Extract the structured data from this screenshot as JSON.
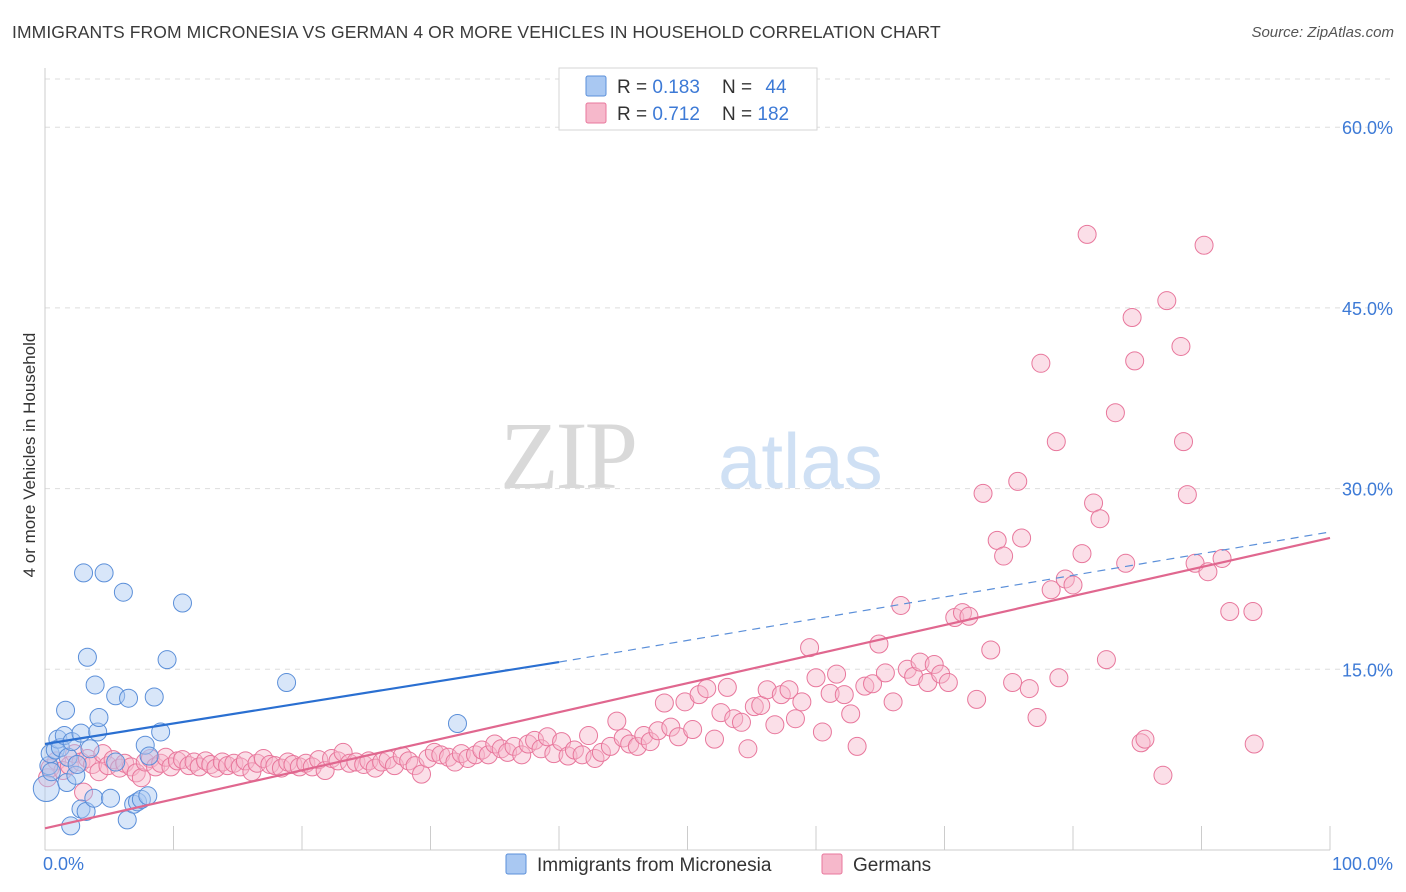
{
  "title": "IMMIGRANTS FROM MICRONESIA VS GERMAN 4 OR MORE VEHICLES IN HOUSEHOLD CORRELATION CHART",
  "source": "Source: ZipAtlas.com",
  "watermark": {
    "zip": "ZIP",
    "atlas": "atlas"
  },
  "colors": {
    "blue": "#5b8fd9",
    "blue_fill": "#a9c8f2",
    "blue_line": "#2a6fd1",
    "pink": "#e8779c",
    "pink_fill": "#f6b8cb",
    "pink_line": "#e0678f",
    "axis_text": "#3d7ad6",
    "grid": "#dddddd"
  },
  "legend": {
    "items": [
      {
        "r_label": "R = ",
        "r_value": "0.183",
        "n_label": "N = ",
        "n_value": "44"
      },
      {
        "r_label": "R = ",
        "r_value": "0.712",
        "n_label": "N = ",
        "n_value": "182"
      }
    ]
  },
  "bottom_legend": [
    "Immigrants from Micronesia",
    "Germans"
  ],
  "chart_data": {
    "type": "scatter",
    "title": "IMMIGRANTS FROM MICRONESIA VS GERMAN 4 OR MORE VEHICLES IN HOUSEHOLD CORRELATION CHART",
    "xlabel": "",
    "ylabel": "4 or more Vehicles in Household",
    "xlim": [
      0,
      100
    ],
    "ylim": [
      0,
      64
    ],
    "x_tick_labels": [
      "0.0%",
      "100.0%"
    ],
    "y_ticks": [
      15,
      30,
      45,
      60
    ],
    "y_tick_labels": [
      "15.0%",
      "30.0%",
      "45.0%",
      "60.0%"
    ],
    "grid": true,
    "legend_position": "top-center",
    "series": [
      {
        "name": "Immigrants from Micronesia",
        "color": "#a9c8f2",
        "r": 0.183,
        "n": 44,
        "trend": {
          "x": [
            0,
            40
          ],
          "y": [
            8.8,
            15.6
          ],
          "dashed_to": [
            100,
            26.4
          ]
        },
        "points": [
          [
            0.1,
            5.1
          ],
          [
            0.3,
            7.0
          ],
          [
            0.4,
            8.0
          ],
          [
            0.5,
            6.5
          ],
          [
            0.8,
            8.3
          ],
          [
            1.0,
            9.2
          ],
          [
            1.2,
            8.5
          ],
          [
            1.5,
            9.5
          ],
          [
            1.6,
            11.6
          ],
          [
            1.7,
            5.6
          ],
          [
            1.8,
            7.7
          ],
          [
            2.0,
            2.0
          ],
          [
            2.1,
            9.0
          ],
          [
            2.4,
            6.2
          ],
          [
            2.5,
            7.1
          ],
          [
            2.8,
            9.7
          ],
          [
            2.8,
            3.4
          ],
          [
            3.0,
            23.0
          ],
          [
            3.2,
            3.2
          ],
          [
            3.3,
            16.0
          ],
          [
            3.5,
            8.4
          ],
          [
            3.8,
            4.3
          ],
          [
            3.9,
            13.7
          ],
          [
            4.1,
            9.8
          ],
          [
            4.2,
            11.0
          ],
          [
            4.6,
            23.0
          ],
          [
            5.1,
            4.3
          ],
          [
            5.5,
            7.3
          ],
          [
            5.5,
            12.8
          ],
          [
            6.1,
            21.4
          ],
          [
            6.4,
            2.5
          ],
          [
            6.5,
            12.6
          ],
          [
            6.9,
            3.8
          ],
          [
            7.2,
            4.0
          ],
          [
            7.5,
            4.2
          ],
          [
            7.8,
            8.7
          ],
          [
            8.0,
            4.5
          ],
          [
            8.1,
            7.8
          ],
          [
            8.5,
            12.7
          ],
          [
            9.0,
            9.8
          ],
          [
            9.5,
            15.8
          ],
          [
            10.7,
            20.5
          ],
          [
            18.8,
            13.9
          ],
          [
            32.1,
            10.5
          ]
        ]
      },
      {
        "name": "Germans",
        "color": "#f6b8cb",
        "r": 0.712,
        "n": 182,
        "trend": {
          "x": [
            0,
            100
          ],
          "y": [
            1.8,
            25.9
          ]
        },
        "points": [
          [
            0.2,
            6.0
          ],
          [
            0.4,
            6.8
          ],
          [
            0.9,
            7.4
          ],
          [
            1.4,
            6.6
          ],
          [
            1.9,
            7.0
          ],
          [
            2.3,
            8.0
          ],
          [
            2.8,
            7.3
          ],
          [
            3.0,
            4.8
          ],
          [
            3.3,
            7.6
          ],
          [
            3.7,
            7.1
          ],
          [
            4.2,
            6.5
          ],
          [
            4.5,
            8.0
          ],
          [
            4.9,
            7.0
          ],
          [
            5.3,
            7.5
          ],
          [
            5.8,
            6.8
          ],
          [
            6.2,
            7.2
          ],
          [
            6.7,
            6.9
          ],
          [
            7.1,
            6.4
          ],
          [
            7.5,
            6.0
          ],
          [
            7.8,
            7.3
          ],
          [
            8.2,
            7.6
          ],
          [
            8.6,
            6.9
          ],
          [
            9.0,
            7.2
          ],
          [
            9.4,
            7.7
          ],
          [
            9.8,
            6.9
          ],
          [
            10.3,
            7.4
          ],
          [
            10.7,
            7.5
          ],
          [
            11.2,
            7.0
          ],
          [
            11.6,
            7.3
          ],
          [
            12.0,
            6.9
          ],
          [
            12.5,
            7.4
          ],
          [
            12.9,
            7.1
          ],
          [
            13.3,
            6.8
          ],
          [
            13.8,
            7.3
          ],
          [
            14.2,
            7.0
          ],
          [
            14.7,
            7.2
          ],
          [
            15.2,
            6.9
          ],
          [
            15.6,
            7.4
          ],
          [
            16.1,
            6.5
          ],
          [
            16.5,
            7.2
          ],
          [
            17.0,
            7.6
          ],
          [
            17.5,
            7.1
          ],
          [
            17.9,
            7.0
          ],
          [
            18.4,
            6.8
          ],
          [
            18.9,
            7.3
          ],
          [
            19.3,
            7.1
          ],
          [
            19.8,
            6.9
          ],
          [
            20.3,
            7.2
          ],
          [
            20.8,
            6.9
          ],
          [
            21.3,
            7.5
          ],
          [
            21.8,
            6.6
          ],
          [
            22.3,
            7.6
          ],
          [
            22.8,
            7.4
          ],
          [
            23.2,
            8.1
          ],
          [
            23.7,
            7.2
          ],
          [
            24.2,
            7.3
          ],
          [
            24.8,
            7.1
          ],
          [
            25.2,
            7.4
          ],
          [
            25.7,
            6.8
          ],
          [
            26.2,
            7.3
          ],
          [
            26.7,
            7.5
          ],
          [
            27.2,
            7.0
          ],
          [
            27.8,
            7.8
          ],
          [
            28.3,
            7.4
          ],
          [
            28.8,
            7.0
          ],
          [
            29.3,
            6.3
          ],
          [
            29.8,
            7.6
          ],
          [
            30.3,
            8.1
          ],
          [
            30.8,
            7.9
          ],
          [
            31.4,
            7.7
          ],
          [
            31.9,
            7.3
          ],
          [
            32.4,
            8.0
          ],
          [
            32.9,
            7.6
          ],
          [
            33.5,
            7.9
          ],
          [
            34.0,
            8.3
          ],
          [
            34.5,
            7.9
          ],
          [
            35.0,
            8.8
          ],
          [
            35.5,
            8.4
          ],
          [
            36.0,
            8.1
          ],
          [
            36.5,
            8.6
          ],
          [
            37.1,
            7.9
          ],
          [
            37.6,
            8.8
          ],
          [
            38.1,
            9.1
          ],
          [
            38.6,
            8.4
          ],
          [
            39.1,
            9.4
          ],
          [
            39.6,
            8.0
          ],
          [
            40.2,
            9.0
          ],
          [
            40.7,
            7.8
          ],
          [
            41.2,
            8.3
          ],
          [
            41.8,
            7.9
          ],
          [
            42.3,
            9.5
          ],
          [
            42.8,
            7.6
          ],
          [
            43.3,
            8.1
          ],
          [
            44.0,
            8.6
          ],
          [
            44.5,
            10.7
          ],
          [
            45.0,
            9.3
          ],
          [
            45.5,
            8.8
          ],
          [
            46.1,
            8.6
          ],
          [
            46.6,
            9.5
          ],
          [
            47.1,
            9.0
          ],
          [
            47.7,
            9.9
          ],
          [
            48.2,
            12.2
          ],
          [
            48.7,
            10.2
          ],
          [
            49.3,
            9.4
          ],
          [
            49.8,
            12.3
          ],
          [
            50.4,
            10.0
          ],
          [
            50.9,
            12.9
          ],
          [
            51.5,
            13.4
          ],
          [
            52.1,
            9.2
          ],
          [
            52.6,
            11.4
          ],
          [
            53.1,
            13.5
          ],
          [
            53.6,
            10.9
          ],
          [
            54.2,
            10.6
          ],
          [
            54.7,
            8.4
          ],
          [
            55.2,
            11.9
          ],
          [
            55.7,
            12.0
          ],
          [
            56.2,
            13.3
          ],
          [
            56.8,
            10.4
          ],
          [
            57.3,
            12.9
          ],
          [
            57.9,
            13.3
          ],
          [
            58.4,
            10.9
          ],
          [
            58.9,
            12.3
          ],
          [
            59.5,
            16.8
          ],
          [
            60.0,
            14.3
          ],
          [
            60.5,
            9.8
          ],
          [
            61.1,
            13.0
          ],
          [
            61.6,
            14.6
          ],
          [
            62.2,
            12.9
          ],
          [
            62.7,
            11.3
          ],
          [
            63.2,
            8.6
          ],
          [
            63.8,
            13.6
          ],
          [
            64.4,
            13.8
          ],
          [
            64.9,
            17.1
          ],
          [
            65.4,
            14.7
          ],
          [
            66.0,
            12.3
          ],
          [
            66.6,
            20.3
          ],
          [
            67.1,
            15.0
          ],
          [
            67.6,
            14.4
          ],
          [
            68.1,
            15.6
          ],
          [
            68.7,
            13.9
          ],
          [
            69.2,
            15.4
          ],
          [
            69.7,
            14.6
          ],
          [
            70.3,
            13.9
          ],
          [
            70.8,
            19.3
          ],
          [
            71.4,
            19.7
          ],
          [
            71.9,
            19.4
          ],
          [
            72.5,
            12.5
          ],
          [
            73.0,
            29.6
          ],
          [
            73.6,
            16.6
          ],
          [
            74.1,
            25.7
          ],
          [
            74.6,
            24.4
          ],
          [
            75.3,
            13.9
          ],
          [
            75.7,
            30.6
          ],
          [
            76.0,
            25.9
          ],
          [
            76.6,
            13.4
          ],
          [
            77.2,
            11.0
          ],
          [
            77.5,
            40.4
          ],
          [
            78.3,
            21.6
          ],
          [
            78.7,
            33.9
          ],
          [
            78.9,
            14.3
          ],
          [
            79.4,
            22.5
          ],
          [
            80.0,
            22.0
          ],
          [
            80.7,
            24.6
          ],
          [
            81.1,
            51.1
          ],
          [
            81.6,
            28.8
          ],
          [
            82.1,
            27.5
          ],
          [
            82.6,
            15.8
          ],
          [
            83.3,
            36.3
          ],
          [
            84.1,
            23.8
          ],
          [
            84.6,
            44.2
          ],
          [
            84.8,
            40.6
          ],
          [
            85.3,
            8.9
          ],
          [
            85.6,
            9.2
          ],
          [
            87.0,
            6.2
          ],
          [
            87.3,
            45.6
          ],
          [
            88.4,
            41.8
          ],
          [
            88.6,
            33.9
          ],
          [
            88.9,
            29.5
          ],
          [
            89.5,
            23.8
          ],
          [
            90.2,
            50.2
          ],
          [
            90.5,
            23.1
          ],
          [
            91.6,
            24.2
          ],
          [
            92.2,
            19.8
          ],
          [
            94.0,
            19.8
          ],
          [
            94.1,
            8.8
          ]
        ]
      }
    ]
  }
}
